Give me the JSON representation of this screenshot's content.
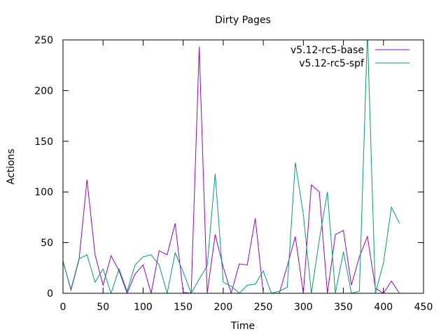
{
  "chart_data": {
    "type": "line",
    "title": "Dirty Pages",
    "xlabel": "Time",
    "ylabel": "Actions",
    "xlim": [
      0,
      450
    ],
    "ylim": [
      0,
      250
    ],
    "xticks": [
      0,
      50,
      100,
      150,
      200,
      250,
      300,
      350,
      400,
      450
    ],
    "yticks": [
      0,
      50,
      100,
      150,
      200,
      250
    ],
    "grid": false,
    "legend_position": "top-right",
    "series": [
      {
        "name": "v5.12-rc5-base",
        "color": "#9400d3",
        "x": [
          0,
          10,
          20,
          30,
          40,
          50,
          60,
          70,
          80,
          90,
          100,
          110,
          120,
          130,
          140,
          150,
          160,
          170,
          180,
          190,
          200,
          210,
          220,
          230,
          240,
          250,
          260,
          270,
          280,
          290,
          300,
          310,
          320,
          330,
          340,
          350,
          360,
          370,
          380,
          390,
          400,
          410,
          420
        ],
        "y": [
          32,
          3,
          33,
          112,
          38,
          8,
          37,
          22,
          0,
          19,
          28,
          0,
          42,
          38,
          69,
          1,
          0,
          243,
          0,
          58,
          26,
          0,
          29,
          28,
          74,
          0,
          0,
          0,
          27,
          56,
          0,
          107,
          100,
          0,
          58,
          62,
          8,
          36,
          56,
          5,
          0,
          12,
          0
        ]
      },
      {
        "name": "v5.12-rc5-spf",
        "color": "#009e73",
        "x": [
          0,
          10,
          20,
          30,
          40,
          50,
          60,
          70,
          80,
          90,
          100,
          110,
          120,
          130,
          140,
          150,
          160,
          170,
          180,
          190,
          200,
          210,
          220,
          230,
          240,
          250,
          260,
          270,
          280,
          290,
          300,
          310,
          320,
          330,
          340,
          350,
          360,
          370,
          380,
          390,
          400,
          410,
          420
        ],
        "y": [
          31,
          4,
          34,
          38,
          11,
          24,
          0,
          24,
          2,
          28,
          36,
          38,
          28,
          0,
          40,
          21,
          0,
          14,
          27,
          118,
          11,
          7,
          0,
          8,
          9,
          22,
          0,
          2,
          6,
          129,
          78,
          0,
          53,
          100,
          0,
          41,
          0,
          2,
          258,
          0,
          30,
          85,
          69
        ]
      }
    ]
  }
}
